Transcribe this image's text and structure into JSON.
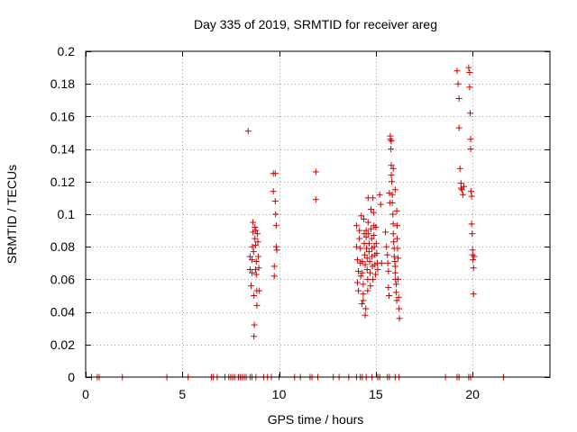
{
  "chart_data": {
    "type": "scatter",
    "title": "Day 335 of 2019, SRMTID for receiver areg",
    "xlabel": "GPS time / hours",
    "ylabel": "SRMTID / TECUs",
    "xlim": [
      0,
      24
    ],
    "ylim": [
      0,
      0.2
    ],
    "xticks": [
      0,
      5,
      10,
      15,
      20
    ],
    "yticks": [
      0,
      0.02,
      0.04,
      0.06,
      0.08,
      0.1,
      0.12,
      0.14,
      0.16,
      0.18,
      0.2
    ],
    "xtick_labels": [
      "0",
      "5",
      "10",
      "15",
      "20"
    ],
    "ytick_labels": [
      "0",
      "0.02",
      "0.04",
      "0.06",
      "0.08",
      "0.1",
      "0.12",
      "0.14",
      "0.16",
      "0.18",
      "0.2"
    ],
    "grid": true,
    "marker": "+",
    "color": "#cc0000",
    "series": [
      {
        "name": "SRMTID",
        "points": [
          [
            0.3,
            0
          ],
          [
            0.6,
            0
          ],
          [
            0.7,
            0
          ],
          [
            1.9,
            0
          ],
          [
            4.2,
            0
          ],
          [
            5.3,
            0
          ],
          [
            6.5,
            0
          ],
          [
            6.6,
            0
          ],
          [
            6.8,
            0
          ],
          [
            7.2,
            0
          ],
          [
            7.4,
            0
          ],
          [
            7.5,
            0
          ],
          [
            7.6,
            0
          ],
          [
            7.7,
            0
          ],
          [
            7.9,
            0
          ],
          [
            8.0,
            0
          ],
          [
            8.1,
            0
          ],
          [
            8.2,
            0
          ],
          [
            8.3,
            0
          ],
          [
            8.5,
            0
          ],
          [
            8.6,
            0
          ],
          [
            8.8,
            0
          ],
          [
            9.2,
            0
          ],
          [
            9.4,
            0
          ],
          [
            9.6,
            0
          ],
          [
            10.0,
            0
          ],
          [
            10.8,
            0
          ],
          [
            11.1,
            0
          ],
          [
            11.6,
            0
          ],
          [
            11.7,
            0
          ],
          [
            12.0,
            0
          ],
          [
            12.8,
            0
          ],
          [
            13.1,
            0
          ],
          [
            13.6,
            0
          ],
          [
            14.0,
            0
          ],
          [
            14.2,
            0
          ],
          [
            14.3,
            0
          ],
          [
            14.5,
            0
          ],
          [
            14.8,
            0
          ],
          [
            15.1,
            0
          ],
          [
            15.2,
            0
          ],
          [
            15.6,
            0
          ],
          [
            15.7,
            0
          ],
          [
            16.0,
            0
          ],
          [
            16.2,
            0
          ],
          [
            18.6,
            0
          ],
          [
            19.2,
            0
          ],
          [
            19.3,
            0
          ],
          [
            19.8,
            0
          ],
          [
            19.9,
            0
          ],
          [
            21.6,
            0
          ],
          [
            8.4,
            0.151
          ],
          [
            8.5,
            0.074
          ],
          [
            8.5,
            0.066
          ],
          [
            8.55,
            0.056
          ],
          [
            8.6,
            0.072
          ],
          [
            8.6,
            0.064
          ],
          [
            8.62,
            0.08
          ],
          [
            8.65,
            0.095
          ],
          [
            8.65,
            0.089
          ],
          [
            8.68,
            0.077
          ],
          [
            8.7,
            0.05
          ],
          [
            8.72,
            0.032
          ],
          [
            8.75,
            0.092
          ],
          [
            8.75,
            0.085
          ],
          [
            8.78,
            0.081
          ],
          [
            8.78,
            0.066
          ],
          [
            8.8,
            0.09
          ],
          [
            8.82,
            0.071
          ],
          [
            8.82,
            0.063
          ],
          [
            8.85,
            0.053
          ],
          [
            8.85,
            0.044
          ],
          [
            8.88,
            0.088
          ],
          [
            8.9,
            0.083
          ],
          [
            8.92,
            0.074
          ],
          [
            8.95,
            0.067
          ],
          [
            8.98,
            0.053
          ],
          [
            8.7,
            0.025
          ],
          [
            9.7,
            0.125
          ],
          [
            9.7,
            0.114
          ],
          [
            9.75,
            0.068
          ],
          [
            9.75,
            0.062
          ],
          [
            9.8,
            0.125
          ],
          [
            9.8,
            0.108
          ],
          [
            9.82,
            0.1
          ],
          [
            9.85,
            0.093
          ],
          [
            9.85,
            0.08
          ],
          [
            9.88,
            0.078
          ],
          [
            11.9,
            0.126
          ],
          [
            11.9,
            0.109
          ],
          [
            14.0,
            0.093
          ],
          [
            14.0,
            0.08
          ],
          [
            14.05,
            0.072
          ],
          [
            14.05,
            0.058
          ],
          [
            14.1,
            0.065
          ],
          [
            14.1,
            0.053
          ],
          [
            14.15,
            0.09
          ],
          [
            14.15,
            0.085
          ],
          [
            14.2,
            0.079
          ],
          [
            14.2,
            0.07
          ],
          [
            14.22,
            0.062
          ],
          [
            14.25,
            0.099
          ],
          [
            14.28,
            0.045
          ],
          [
            14.3,
            0.071
          ],
          [
            14.3,
            0.064
          ],
          [
            14.35,
            0.057
          ],
          [
            14.35,
            0.051
          ],
          [
            14.38,
            0.097
          ],
          [
            14.4,
            0.088
          ],
          [
            14.4,
            0.082
          ],
          [
            14.42,
            0.075
          ],
          [
            14.45,
            0.069
          ],
          [
            14.45,
            0.038
          ],
          [
            14.48,
            0.042
          ],
          [
            14.5,
            0.09
          ],
          [
            14.5,
            0.086
          ],
          [
            14.52,
            0.079
          ],
          [
            14.55,
            0.073
          ],
          [
            14.55,
            0.066
          ],
          [
            14.58,
            0.06
          ],
          [
            14.6,
            0.11
          ],
          [
            14.6,
            0.095
          ],
          [
            14.62,
            0.088
          ],
          [
            14.65,
            0.082
          ],
          [
            14.65,
            0.077
          ],
          [
            14.68,
            0.071
          ],
          [
            14.7,
            0.064
          ],
          [
            14.72,
            0.056
          ],
          [
            14.75,
            0.103
          ],
          [
            14.75,
            0.091
          ],
          [
            14.78,
            0.085
          ],
          [
            14.8,
            0.079
          ],
          [
            14.8,
            0.074
          ],
          [
            14.82,
            0.068
          ],
          [
            14.85,
            0.06
          ],
          [
            14.85,
            0.11
          ],
          [
            14.88,
            0.101
          ],
          [
            14.9,
            0.093
          ],
          [
            14.9,
            0.087
          ],
          [
            14.92,
            0.08
          ],
          [
            14.95,
            0.075
          ],
          [
            14.95,
            0.069
          ],
          [
            14.98,
            0.063
          ],
          [
            15.0,
            0.092
          ],
          [
            15.02,
            0.082
          ],
          [
            15.05,
            0.076
          ],
          [
            15.08,
            0.07
          ],
          [
            15.1,
            0.066
          ],
          [
            14.35,
            0.047
          ],
          [
            14.58,
            0.053
          ],
          [
            15.2,
            0.112
          ],
          [
            15.25,
            0.106
          ],
          [
            15.3,
            0.07
          ],
          [
            15.5,
            0.089
          ],
          [
            15.55,
            0.08
          ],
          [
            15.6,
            0.075
          ],
          [
            15.62,
            0.07
          ],
          [
            15.65,
            0.065
          ],
          [
            15.65,
            0.055
          ],
          [
            15.68,
            0.05
          ],
          [
            15.7,
            0.113
          ],
          [
            15.72,
            0.107
          ],
          [
            15.75,
            0.148
          ],
          [
            15.75,
            0.146
          ],
          [
            15.78,
            0.14
          ],
          [
            15.8,
            0.13
          ],
          [
            15.8,
            0.124
          ],
          [
            15.82,
            0.12
          ],
          [
            15.85,
            0.112
          ],
          [
            15.85,
            0.107
          ],
          [
            15.88,
            0.1
          ],
          [
            15.9,
            0.094
          ],
          [
            15.9,
            0.088
          ],
          [
            15.92,
            0.083
          ],
          [
            15.95,
            0.079
          ],
          [
            15.95,
            0.074
          ],
          [
            15.98,
            0.071
          ],
          [
            16.0,
            0.068
          ],
          [
            16.0,
            0.064
          ],
          [
            16.02,
            0.06
          ],
          [
            16.05,
            0.057
          ],
          [
            16.05,
            0.052
          ],
          [
            16.08,
            0.047
          ],
          [
            16.1,
            0.093
          ],
          [
            16.1,
            0.085
          ],
          [
            16.12,
            0.079
          ],
          [
            16.15,
            0.073
          ],
          [
            16.15,
            0.06
          ],
          [
            16.18,
            0.049
          ],
          [
            16.2,
            0.042
          ],
          [
            16.22,
            0.036
          ],
          [
            15.8,
            0.145
          ],
          [
            15.9,
            0.128
          ],
          [
            16.0,
            0.115
          ],
          [
            16.08,
            0.102
          ],
          [
            19.2,
            0.188
          ],
          [
            19.25,
            0.18
          ],
          [
            19.3,
            0.171
          ],
          [
            19.3,
            0.153
          ],
          [
            19.35,
            0.128
          ],
          [
            19.4,
            0.119
          ],
          [
            19.4,
            0.116
          ],
          [
            19.45,
            0.115
          ],
          [
            19.5,
            0.112
          ],
          [
            19.55,
            0.117
          ],
          [
            19.8,
            0.19
          ],
          [
            19.85,
            0.187
          ],
          [
            19.85,
            0.178
          ],
          [
            19.88,
            0.162
          ],
          [
            19.9,
            0.146
          ],
          [
            19.9,
            0.14
          ],
          [
            19.92,
            0.114
          ],
          [
            19.95,
            0.111
          ],
          [
            19.95,
            0.094
          ],
          [
            19.98,
            0.088
          ],
          [
            20.0,
            0.078
          ],
          [
            20.0,
            0.075
          ],
          [
            20.02,
            0.072
          ],
          [
            20.05,
            0.067
          ],
          [
            20.05,
            0.051
          ],
          [
            20.08,
            0.074
          ]
        ]
      }
    ]
  }
}
